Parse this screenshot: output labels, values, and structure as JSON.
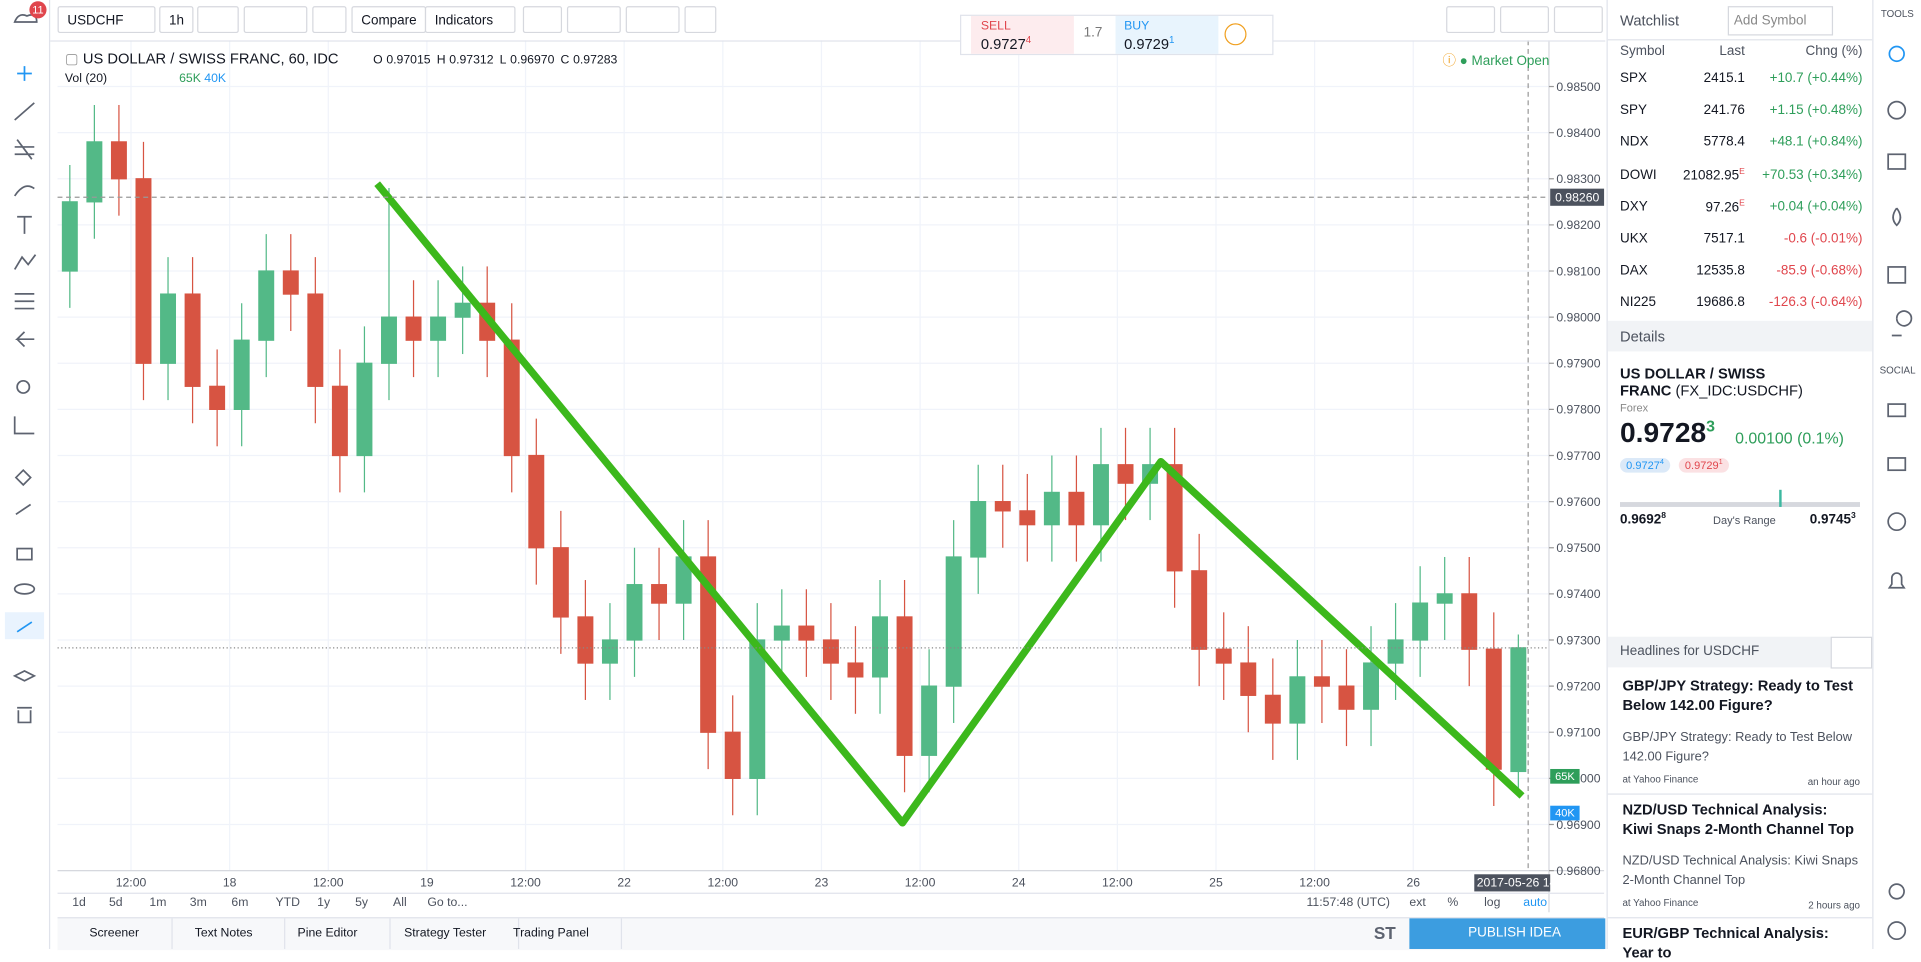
{
  "toolbar": {
    "badge": "11",
    "symbol": "USDCHF",
    "interval": "1h",
    "compare": "Compare",
    "indicators": "Indicators"
  },
  "trade": {
    "sell_label": "SELL",
    "sell_price": "0.9727",
    "sell_pip": "4",
    "spread": "1.7",
    "buy_label": "BUY",
    "buy_price": "0.9729",
    "buy_pip": "1"
  },
  "chart_header": {
    "title": "US DOLLAR / SWISS FRANC, 60, IDC",
    "ohlc": [
      {
        "k": "O",
        "v": "0.97015"
      },
      {
        "k": "H",
        "v": "0.97312"
      },
      {
        "k": "L",
        "v": "0.96970"
      },
      {
        "k": "C",
        "v": "0.97283"
      }
    ],
    "market_status": "Market Open"
  },
  "volume": {
    "label": "Vol (20)",
    "values": [
      "65K",
      "40K"
    ]
  },
  "chart_data": {
    "type": "candlestick",
    "open": [
      0.981,
      0.9825,
      0.9838,
      0.983,
      0.979,
      0.9805,
      0.9785,
      0.978,
      0.9795,
      0.981,
      0.9805,
      0.9785,
      0.977,
      0.979,
      0.98,
      0.9795,
      0.98,
      0.9803,
      0.9795,
      0.977,
      0.975,
      0.9735,
      0.9725,
      0.973,
      0.9742,
      0.9738,
      0.9748,
      0.971,
      0.97,
      0.973,
      0.9733,
      0.973,
      0.9725,
      0.9722,
      0.9735,
      0.9705,
      0.972,
      0.9748,
      0.976,
      0.9758,
      0.9755,
      0.9762,
      0.9755,
      0.9768,
      0.9764,
      0.9768,
      0.9745,
      0.9728,
      0.9725,
      0.9718,
      0.9712,
      0.9722,
      0.972,
      0.9715,
      0.9725,
      0.973,
      0.9738,
      0.974,
      0.9728,
      0.97015
    ],
    "high": [
      0.9833,
      0.9846,
      0.9846,
      0.9838,
      0.9813,
      0.9813,
      0.9793,
      0.9803,
      0.9818,
      0.9818,
      0.9813,
      0.9793,
      0.9798,
      0.9828,
      0.9808,
      0.9808,
      0.9811,
      0.9811,
      0.9803,
      0.9778,
      0.9758,
      0.9743,
      0.9738,
      0.975,
      0.975,
      0.9756,
      0.9756,
      0.9718,
      0.9738,
      0.9741,
      0.9741,
      0.9738,
      0.9733,
      0.9743,
      0.9743,
      0.9728,
      0.9756,
      0.9768,
      0.9768,
      0.9766,
      0.977,
      0.977,
      0.9776,
      0.9776,
      0.9776,
      0.9776,
      0.9753,
      0.9736,
      0.9733,
      0.9726,
      0.973,
      0.973,
      0.9728,
      0.9733,
      0.9738,
      0.9746,
      0.9748,
      0.9748,
      0.9736,
      0.97312
    ],
    "low": [
      0.9802,
      0.9817,
      0.9822,
      0.9782,
      0.9782,
      0.9777,
      0.9772,
      0.9772,
      0.9787,
      0.9797,
      0.9777,
      0.9762,
      0.9762,
      0.9782,
      0.9787,
      0.9787,
      0.9792,
      0.9787,
      0.9762,
      0.9742,
      0.9727,
      0.9717,
      0.9717,
      0.9722,
      0.973,
      0.973,
      0.9702,
      0.9692,
      0.9692,
      0.9722,
      0.9722,
      0.9717,
      0.9714,
      0.9714,
      0.9697,
      0.9697,
      0.9712,
      0.974,
      0.975,
      0.9747,
      0.9747,
      0.9747,
      0.9747,
      0.9756,
      0.9756,
      0.9737,
      0.972,
      0.9717,
      0.971,
      0.9704,
      0.9704,
      0.9712,
      0.9707,
      0.9707,
      0.9717,
      0.9722,
      0.973,
      0.972,
      0.9694,
      0.9697
    ],
    "close": [
      0.9825,
      0.9838,
      0.983,
      0.979,
      0.9805,
      0.9785,
      0.978,
      0.9795,
      0.981,
      0.9805,
      0.9785,
      0.977,
      0.979,
      0.98,
      0.9795,
      0.98,
      0.9803,
      0.9795,
      0.977,
      0.975,
      0.9735,
      0.9725,
      0.973,
      0.9742,
      0.9738,
      0.9748,
      0.971,
      0.97,
      0.973,
      0.9733,
      0.973,
      0.9725,
      0.9722,
      0.9735,
      0.9705,
      0.972,
      0.9748,
      0.976,
      0.9758,
      0.9755,
      0.9762,
      0.9755,
      0.9768,
      0.9764,
      0.9768,
      0.9745,
      0.9728,
      0.9725,
      0.9718,
      0.9712,
      0.9722,
      0.972,
      0.9715,
      0.9725,
      0.973,
      0.9738,
      0.974,
      0.9728,
      0.9702,
      0.97283
    ],
    "up_color": "#53b987",
    "down_color": "#d75442",
    "ylim": [
      0.968,
      0.986
    ],
    "yticks": [
      {
        "value": 0.968,
        "label": "0.96800"
      },
      {
        "value": 0.969,
        "label": "0.96900"
      },
      {
        "value": 0.97,
        "label": "0.97000"
      },
      {
        "value": 0.971,
        "label": "0.97100"
      },
      {
        "value": 0.972,
        "label": "0.97200"
      },
      {
        "value": 0.973,
        "label": "0.97300"
      },
      {
        "value": 0.974,
        "label": "0.97400"
      },
      {
        "value": 0.975,
        "label": "0.97500"
      },
      {
        "value": 0.976,
        "label": "0.97600"
      },
      {
        "value": 0.977,
        "label": "0.97700"
      },
      {
        "value": 0.978,
        "label": "0.97800"
      },
      {
        "value": 0.979,
        "label": "0.97900"
      },
      {
        "value": 0.98,
        "label": "0.98000"
      },
      {
        "value": 0.981,
        "label": "0.98100"
      },
      {
        "value": 0.982,
        "label": "0.98200"
      },
      {
        "value": 0.983,
        "label": "0.98300"
      },
      {
        "value": 0.984,
        "label": "0.98400"
      },
      {
        "value": 0.985,
        "label": "0.98500"
      }
    ],
    "crosshair": {
      "value": 0.9826,
      "label": "0.98260"
    },
    "grid": true,
    "time_labels": [
      "12:00",
      "18",
      "12:00",
      "19",
      "12:00",
      "22",
      "12:00",
      "23",
      "12:00",
      "24",
      "12:00",
      "25",
      "12:00",
      "26"
    ],
    "cursor_time": "2017-05-26 14"
  },
  "bottom_bar": {
    "ranges": [
      "1d",
      "5d",
      "1m",
      "3m",
      "6m",
      "YTD",
      "1y",
      "5y",
      "All",
      "Go to..."
    ],
    "clock": "11:57:48 (UTC)",
    "scale_options": [
      "ext",
      "%",
      "log",
      "auto"
    ]
  },
  "tabs": [
    "Screener",
    "Text Notes",
    "Pine Editor",
    "Strategy Tester",
    "Trading Panel"
  ],
  "publish": "PUBLISH IDEA",
  "social_short": "ST",
  "right_toolbar": {
    "tools": "TOOLS",
    "social": "SOCIAL"
  },
  "watchlist": {
    "title": "Watchlist",
    "search": "Add Symbol",
    "columns": [
      "Symbol",
      "Last",
      "Chng (%)"
    ],
    "rows": [
      {
        "symbol": "SPX",
        "last": "2415.1",
        "change": "+10.7 (+0.44%)"
      },
      {
        "symbol": "SPY",
        "last": "241.76",
        "change": "+1.15 (+0.48%)"
      },
      {
        "symbol": "NDX",
        "last": "5778.4",
        "change": "+48.1 (+0.84%)"
      },
      {
        "symbol": "DOWI",
        "last": "21082.95",
        "flag": "E",
        "change": "+70.53 (+0.34%)"
      },
      {
        "symbol": "DXY",
        "last": "97.26",
        "flag": "E",
        "change": "+0.04 (+0.04%)"
      },
      {
        "symbol": "UKX",
        "last": "7517.1",
        "change": "-0.6 (-0.01%)"
      },
      {
        "symbol": "DAX",
        "last": "12535.8",
        "change": "-85.9 (-0.68%)"
      },
      {
        "symbol": "NI225",
        "last": "19686.8",
        "change": "-126.3 (-0.64%)"
      }
    ]
  },
  "details": {
    "title": "Details",
    "name": "US DOLLAR / SWISS FRANC",
    "ticker": "(FX_IDC:USDCHF)",
    "kind": "Forex",
    "price": "0.9728",
    "price_pip": "3",
    "change": "0.00100 (0.1%)",
    "bid": "0.9727",
    "bid_pip": "4",
    "ask": "0.9729",
    "ask_pip": "1",
    "range_low": "0.9692",
    "range_low_pip": "8",
    "range_label": "Day's Range",
    "range_high": "0.9745",
    "range_high_pip": "3"
  },
  "headlines": {
    "title": "Headlines for USDCHF",
    "items": [
      {
        "title": "GBP/JPY Strategy: Ready to Test Below 142.00 Figure?",
        "summary": "GBP/JPY Strategy: Ready to Test Below 142.00 Figure?",
        "source": "at Yahoo Finance",
        "time": "an hour ago"
      },
      {
        "title": "NZD/USD Technical Analysis: Kiwi Snaps 2-Month Channel Top",
        "summary": "NZD/USD Technical Analysis: Kiwi Snaps 2-Month Channel Top",
        "source": "at Yahoo Finance",
        "time": "2 hours ago"
      },
      {
        "title": "EUR/GBP Technical Analysis: Year to"
      }
    ]
  }
}
